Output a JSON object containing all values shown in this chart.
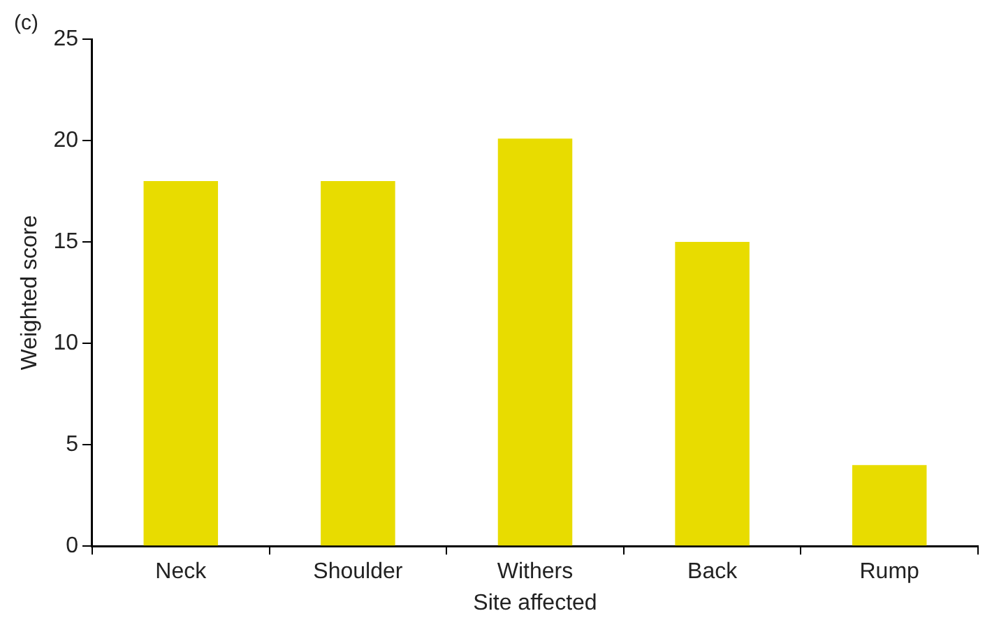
{
  "chart_data": {
    "type": "bar",
    "xlabel": "Site affected",
    "ylabel": "Weighted score",
    "categories": [
      "Neck",
      "Shoulder",
      "Withers",
      "Back",
      "Rump"
    ],
    "values": [
      18,
      18,
      20.1,
      15,
      4
    ],
    "color": "#e8dc00",
    "ylim": [
      0,
      25
    ],
    "yticks": [
      0,
      5,
      10,
      15,
      20,
      25
    ],
    "grid": false,
    "legend": false,
    "annotations": [
      "(c)"
    ]
  }
}
